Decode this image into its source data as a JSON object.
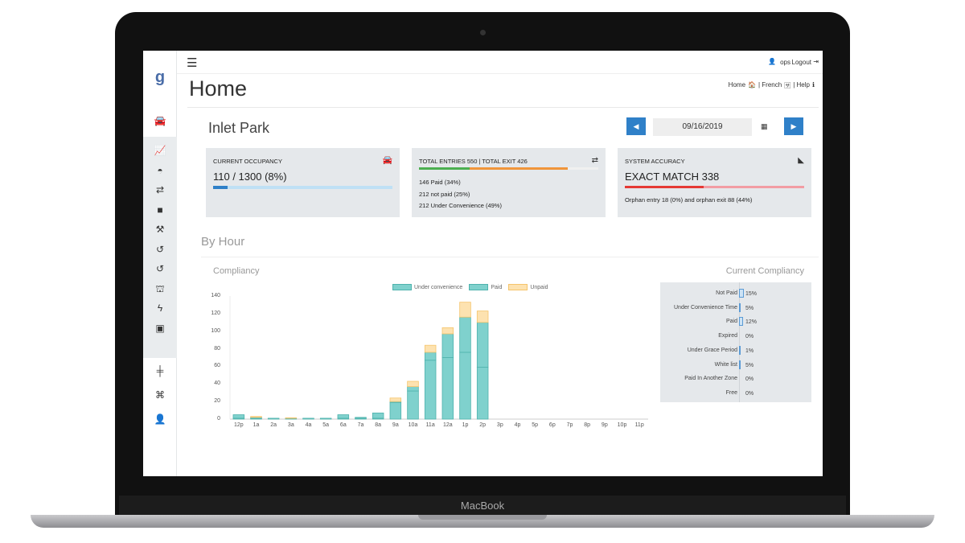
{
  "device_label": "MacBook",
  "header": {
    "user": "ops",
    "logout": "Logout",
    "page_title": "Home",
    "links": {
      "home": "Home",
      "french": "| French",
      "help": "| Help"
    }
  },
  "sidebar": {
    "logo": "g",
    "icons": [
      "car-icon",
      "line-chart-icon",
      "dashboard-icon",
      "exchange-icon",
      "archive-icon",
      "gavel-icon",
      "history-icon",
      "history-alt-icon",
      "binoculars-icon",
      "bolt-icon",
      "money-icon",
      "road-sign-icon",
      "ticket-icon",
      "user-icon"
    ]
  },
  "location": {
    "name": "Inlet Park",
    "date": "09/16/2019"
  },
  "cards": {
    "occupancy": {
      "title": "CURRENT OCCUPANCY",
      "value": "110 / 1300 (8%)",
      "fraction": 0.08
    },
    "entries": {
      "title": "TOTAL ENTRIES 550 | TOTAL EXIT 426",
      "lines": [
        "146 Paid (34%)",
        "212 not paid (25%)",
        "212 Under Convenience (49%)"
      ],
      "bar_green": 0.34,
      "bar_orange": 0.49
    },
    "accuracy": {
      "title": "SYSTEM ACCURACY",
      "value": "EXACT MATCH 338",
      "note": "Orphan entry 18 (0%) and orphan exit 88 (44%)",
      "fraction": 0.44
    }
  },
  "section_title": "By Hour",
  "colors": {
    "teal": "#7fd1cd",
    "teal_border": "#4fb3ad",
    "unpaid": "#fde2b0",
    "unpaid_border": "#f5c46b",
    "blue": "#2f80c8",
    "green": "#4caf50",
    "orange": "#f0953a",
    "red": "#e53935"
  },
  "chart_data": {
    "type": "bar",
    "stacked": true,
    "title": "Compliancy",
    "categories": [
      "12p",
      "1a",
      "2a",
      "3a",
      "4a",
      "5a",
      "6a",
      "7a",
      "8a",
      "9a",
      "10a",
      "11a",
      "12a",
      "1p",
      "2p",
      "3p",
      "4p",
      "5p",
      "6p",
      "7p",
      "8p",
      "9p",
      "10p",
      "11p"
    ],
    "yticks": [
      0,
      20,
      40,
      60,
      80,
      100,
      120,
      140
    ],
    "ylim": [
      0,
      140
    ],
    "legend": "top",
    "series": [
      {
        "name": "Under convenience",
        "values": [
          1,
          1,
          1,
          1,
          1,
          1,
          1,
          1,
          1,
          19,
          32,
          67,
          70,
          76,
          59,
          0,
          0,
          0,
          0,
          0,
          0,
          0,
          0,
          0
        ]
      },
      {
        "name": "Paid",
        "values": [
          4,
          1,
          0,
          0,
          0,
          0,
          4,
          1,
          6,
          1,
          5,
          9,
          27,
          40,
          51,
          0,
          0,
          0,
          0,
          0,
          0,
          0,
          0,
          0
        ]
      },
      {
        "name": "Unpaid",
        "values": [
          0,
          1,
          0,
          0.5,
          0,
          0,
          0,
          0,
          0,
          4,
          6,
          8,
          7,
          17,
          13,
          0,
          0,
          0,
          0,
          0,
          0,
          0,
          0,
          0
        ]
      }
    ]
  },
  "compliancy": {
    "title": "Current Compliancy",
    "rows": [
      {
        "label": "Not Paid",
        "pct": 15,
        "text": "15%"
      },
      {
        "label": "Under Convenience Time",
        "pct": 5,
        "text": "5%"
      },
      {
        "label": "Paid",
        "pct": 12,
        "text": "12%"
      },
      {
        "label": "Expired",
        "pct": 0,
        "text": "0%"
      },
      {
        "label": "Under Grace Period",
        "pct": 1,
        "text": "1%"
      },
      {
        "label": "White list",
        "pct": 5,
        "text": "5%"
      },
      {
        "label": "Paid In Another Zone",
        "pct": 0,
        "text": "0%"
      },
      {
        "label": "Free",
        "pct": 0,
        "text": "0%"
      }
    ]
  }
}
